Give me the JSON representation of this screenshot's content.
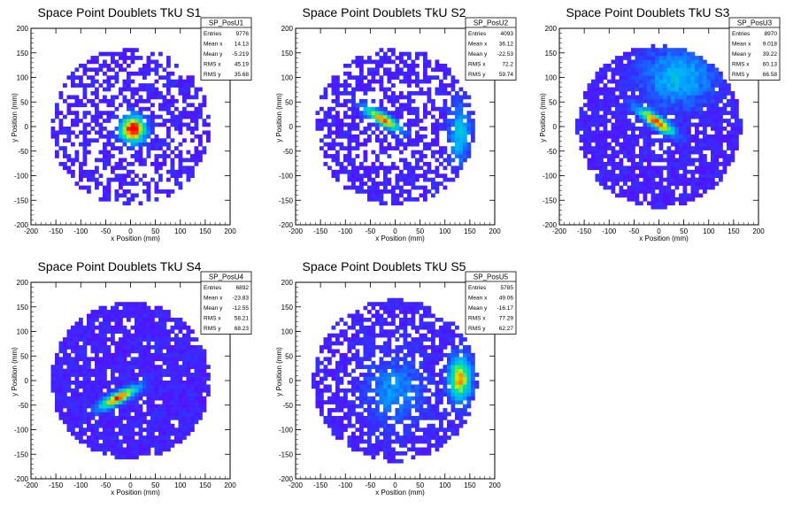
{
  "chart_data": [
    {
      "type": "heatmap",
      "title": "Space Point Doublets TkU S1",
      "xlabel": "x Position (mm)",
      "ylabel": "y Position (mm)",
      "xlim": [
        -200,
        200
      ],
      "ylim": [
        -200,
        200
      ],
      "xticks": [
        "-200",
        "-150",
        "-100",
        "-50",
        "0",
        "50",
        "100",
        "150",
        "200"
      ],
      "yticks": [
        "200",
        "150",
        "100",
        "50",
        "0",
        "-50",
        "-100",
        "-150",
        "-200"
      ],
      "stats": {
        "name": "SP_PosU1",
        "rows": [
          {
            "label": "Entries",
            "value": "9776"
          },
          {
            "label": "Mean x",
            "value": "14.13"
          },
          {
            "label": "Mean y",
            "value": "-5.219"
          },
          {
            "label": "RMS x",
            "value": "45.19"
          },
          {
            "label": "RMS y",
            "value": "35.68"
          }
        ]
      },
      "pattern": {
        "disk_r": 160,
        "density": 0.55,
        "seed": 11,
        "hotspots": [
          {
            "x": 5,
            "y": -5,
            "sx": 18,
            "sy": 18,
            "amp": 1.0
          }
        ]
      }
    },
    {
      "type": "heatmap",
      "title": "Space Point Doublets TkU S2",
      "xlabel": "x Position (mm)",
      "ylabel": "y Position (mm)",
      "xlim": [
        -200,
        200
      ],
      "ylim": [
        -200,
        200
      ],
      "xticks": [
        "-200",
        "-150",
        "-100",
        "-50",
        "0",
        "50",
        "100",
        "150",
        "200"
      ],
      "yticks": [
        "200",
        "150",
        "100",
        "50",
        "0",
        "-50",
        "-100",
        "-150",
        "-200"
      ],
      "stats": {
        "name": "SP_PosU2",
        "rows": [
          {
            "label": "Entries",
            "value": "4093"
          },
          {
            "label": "Mean x",
            "value": "36.12"
          },
          {
            "label": "Mean y",
            "value": "-22.53"
          },
          {
            "label": "RMS x",
            "value": "72.2"
          },
          {
            "label": "RMS y",
            "value": "59.74"
          }
        ]
      },
      "pattern": {
        "disk_r": 160,
        "density": 0.6,
        "seed": 23,
        "hotspots": [
          {
            "x": -25,
            "y": 15,
            "sx": 30,
            "sy": 8,
            "amp": 0.85,
            "rot": -0.55
          },
          {
            "x": 130,
            "y": -15,
            "sx": 14,
            "sy": 40,
            "amp": 0.4
          }
        ]
      }
    },
    {
      "type": "heatmap",
      "title": "Space Point Doublets TkU S3",
      "xlabel": "x Position (mm)",
      "ylabel": "y Position (mm)",
      "xlim": [
        -200,
        200
      ],
      "ylim": [
        -200,
        200
      ],
      "xticks": [
        "-200",
        "-150",
        "-100",
        "-50",
        "0",
        "50",
        "100",
        "150",
        "200"
      ],
      "yticks": [
        "200",
        "150",
        "100",
        "50",
        "0",
        "-50",
        "-100",
        "-150",
        "-200"
      ],
      "stats": {
        "name": "SP_PosU3",
        "rows": [
          {
            "label": "Entries",
            "value": "8970"
          },
          {
            "label": "Mean x",
            "value": "9.018"
          },
          {
            "label": "Mean y",
            "value": "39.22"
          },
          {
            "label": "RMS x",
            "value": "60.13"
          },
          {
            "label": "RMS y",
            "value": "66.58"
          }
        ]
      },
      "pattern": {
        "disk_r": 165,
        "density": 0.85,
        "seed": 37,
        "hotspots": [
          {
            "x": -5,
            "y": 10,
            "sx": 30,
            "sy": 8,
            "amp": 0.9,
            "rot": -0.6
          },
          {
            "x": 40,
            "y": 100,
            "sx": 50,
            "sy": 40,
            "amp": 0.35
          }
        ]
      }
    },
    {
      "type": "heatmap",
      "title": "Space Point Doublets TkU S4",
      "xlabel": "x Position (mm)",
      "ylabel": "y Position (mm)",
      "xlim": [
        -200,
        200
      ],
      "ylim": [
        -200,
        200
      ],
      "xticks": [
        "-200",
        "-150",
        "-100",
        "-50",
        "0",
        "50",
        "100",
        "150",
        "200"
      ],
      "yticks": [
        "200",
        "150",
        "100",
        "50",
        "0",
        "-50",
        "-100",
        "-150",
        "-200"
      ],
      "stats": {
        "name": "SP_PosU4",
        "rows": [
          {
            "label": "Entries",
            "value": "6892"
          },
          {
            "label": "Mean x",
            "value": "-23.83"
          },
          {
            "label": "Mean y",
            "value": "-12.55"
          },
          {
            "label": "RMS x",
            "value": "58.21"
          },
          {
            "label": "RMS y",
            "value": "68.23"
          }
        ]
      },
      "pattern": {
        "disk_r": 160,
        "density": 0.9,
        "seed": 41,
        "hotspots": [
          {
            "x": -25,
            "y": -35,
            "sx": 30,
            "sy": 8,
            "amp": 0.9,
            "rot": 0.5
          }
        ]
      }
    },
    {
      "type": "heatmap",
      "title": "Space Point Doublets TkU S5",
      "xlabel": "x Position (mm)",
      "ylabel": "y Position (mm)",
      "xlim": [
        -200,
        200
      ],
      "ylim": [
        -200,
        200
      ],
      "xticks": [
        "-200",
        "-150",
        "-100",
        "-50",
        "0",
        "50",
        "100",
        "150",
        "200"
      ],
      "yticks": [
        "200",
        "150",
        "100",
        "50",
        "0",
        "-50",
        "-100",
        "-150",
        "-200"
      ],
      "stats": {
        "name": "SP_PosU5",
        "rows": [
          {
            "label": "Entries",
            "value": "5785"
          },
          {
            "label": "Mean x",
            "value": "49.06"
          },
          {
            "label": "Mean y",
            "value": "-16.17"
          },
          {
            "label": "RMS x",
            "value": "77.29"
          },
          {
            "label": "RMS y",
            "value": "62.27"
          }
        ]
      },
      "pattern": {
        "disk_r": 165,
        "density": 0.7,
        "seed": 53,
        "hotspots": [
          {
            "x": 130,
            "y": 5,
            "sx": 15,
            "sy": 30,
            "amp": 0.8
          },
          {
            "x": 0,
            "y": -20,
            "sx": 40,
            "sy": 50,
            "amp": 0.25
          }
        ]
      }
    }
  ]
}
